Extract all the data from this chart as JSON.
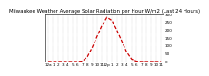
{
  "title": "Milwaukee Weather Average Solar Radiation per Hour W/m2 (Last 24 Hours)",
  "x_values": [
    0,
    1,
    2,
    3,
    4,
    5,
    6,
    7,
    8,
    9,
    10,
    11,
    12,
    13,
    14,
    15,
    16,
    17,
    18,
    19,
    20,
    21,
    22,
    23
  ],
  "y_values": [
    0,
    0,
    0,
    0,
    0,
    0,
    0,
    2,
    30,
    90,
    160,
    230,
    280,
    260,
    200,
    130,
    60,
    15,
    2,
    0,
    0,
    0,
    0,
    0
  ],
  "y_max": 300,
  "y_ticks": [
    0,
    50,
    100,
    150,
    200,
    250,
    300
  ],
  "line_color": "#cc0000",
  "grid_color": "#aaaaaa",
  "background_color": "#ffffff",
  "x_tick_labels": [
    "12a",
    "1",
    "2",
    "3",
    "4",
    "5",
    "6",
    "7",
    "8",
    "9",
    "10",
    "11",
    "12p",
    "1",
    "2",
    "3",
    "4",
    "5",
    "6",
    "7",
    "8",
    "9",
    "10",
    "11"
  ],
  "title_fontsize": 4.0,
  "tick_fontsize": 3.0,
  "ytick_fontsize": 3.0,
  "linewidth": 0.9
}
